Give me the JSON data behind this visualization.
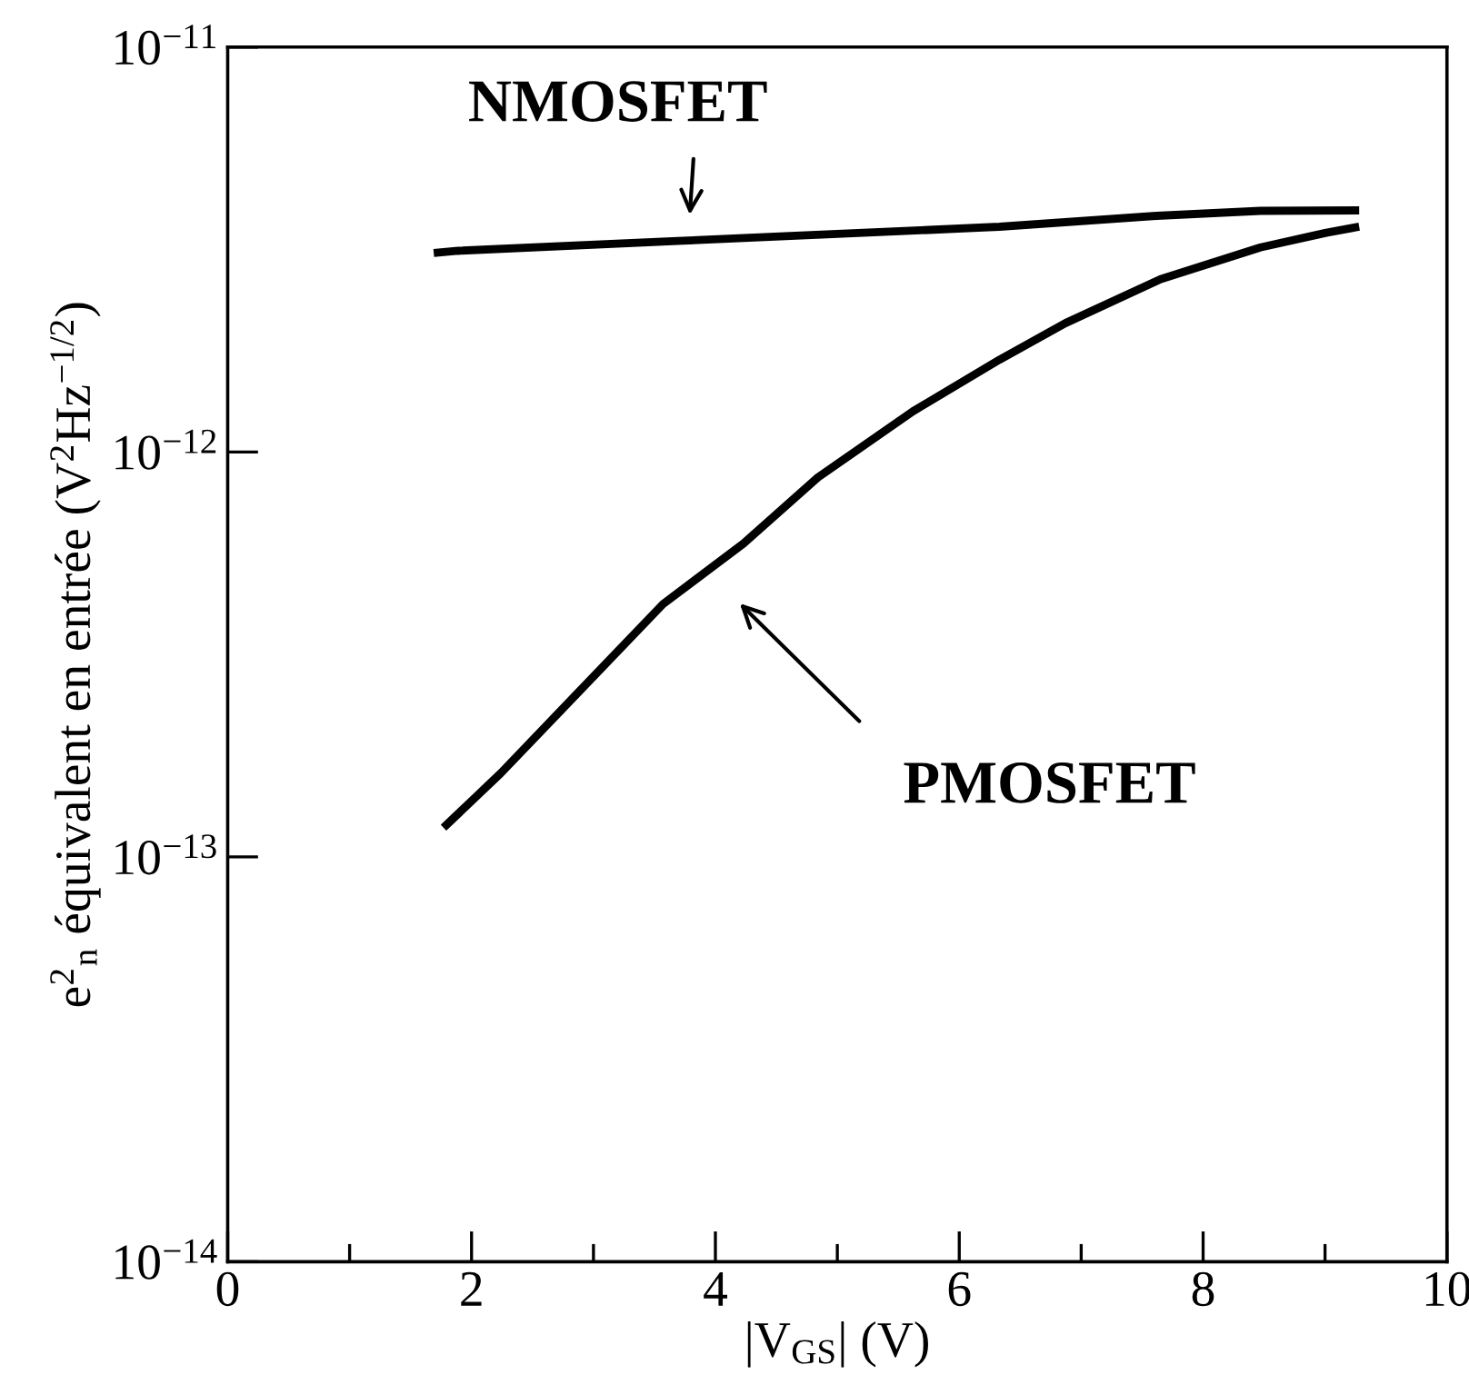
{
  "chart_data": {
    "type": "line",
    "xlabel": "|V$_{GS}$| (V)",
    "ylabel": "e$^{2}$$_{n}$ équivalent en entrée (V$^{2}$Hz$^{−1/2}$)",
    "series": [
      {
        "color": "#000000",
        "x": [
          1.69,
          1.89,
          3.69,
          6.33,
          7.62,
          8.47,
          9.28
        ],
        "values": [
          3.1e-12,
          3.14e-12,
          3.32e-12,
          3.6e-12,
          3.83e-12,
          3.94e-12,
          3.95e-12
        ]
      },
      {
        "color": "#000000",
        "x": [
          1.77,
          2.24,
          3.57,
          4.23,
          4.84,
          5.62,
          6.33,
          6.87,
          7.65,
          8.47,
          9.01,
          9.28
        ],
        "values": [
          1.18e-13,
          1.61e-13,
          4.21e-13,
          5.94e-13,
          8.65e-13,
          1.26e-12,
          1.69e-12,
          2.08e-12,
          2.67e-12,
          3.2e-12,
          3.48e-12,
          3.6e-12
        ]
      }
    ],
    "annotations": [
      "NMOSFET",
      "PMOSFET"
    ],
    "log": "y",
    "xlim": [
      0,
      10
    ],
    "xticks": [
      0,
      {
        "value": 1,
        "label": null
      },
      2,
      {
        "value": 3,
        "label": null
      },
      4,
      {
        "value": 5,
        "label": null
      },
      6,
      {
        "value": 7,
        "label": null
      },
      8,
      {
        "value": 9,
        "label": null
      },
      10
    ],
    "ylim": [
      1e-14,
      1e-11
    ],
    "yticks": [
      {
        "value": 1e-14,
        "label": "10$^{−14}$"
      },
      {
        "value": 1e-13,
        "label": "10$^{−13}$"
      },
      {
        "value": 1e-12,
        "label": "10$^{−12}$"
      },
      {
        "value": 1e-11,
        "label": "10$^{−11}$"
      }
    ],
    "grid": false,
    "legend": false,
    "marker": "none",
    "line_style": "solid"
  }
}
